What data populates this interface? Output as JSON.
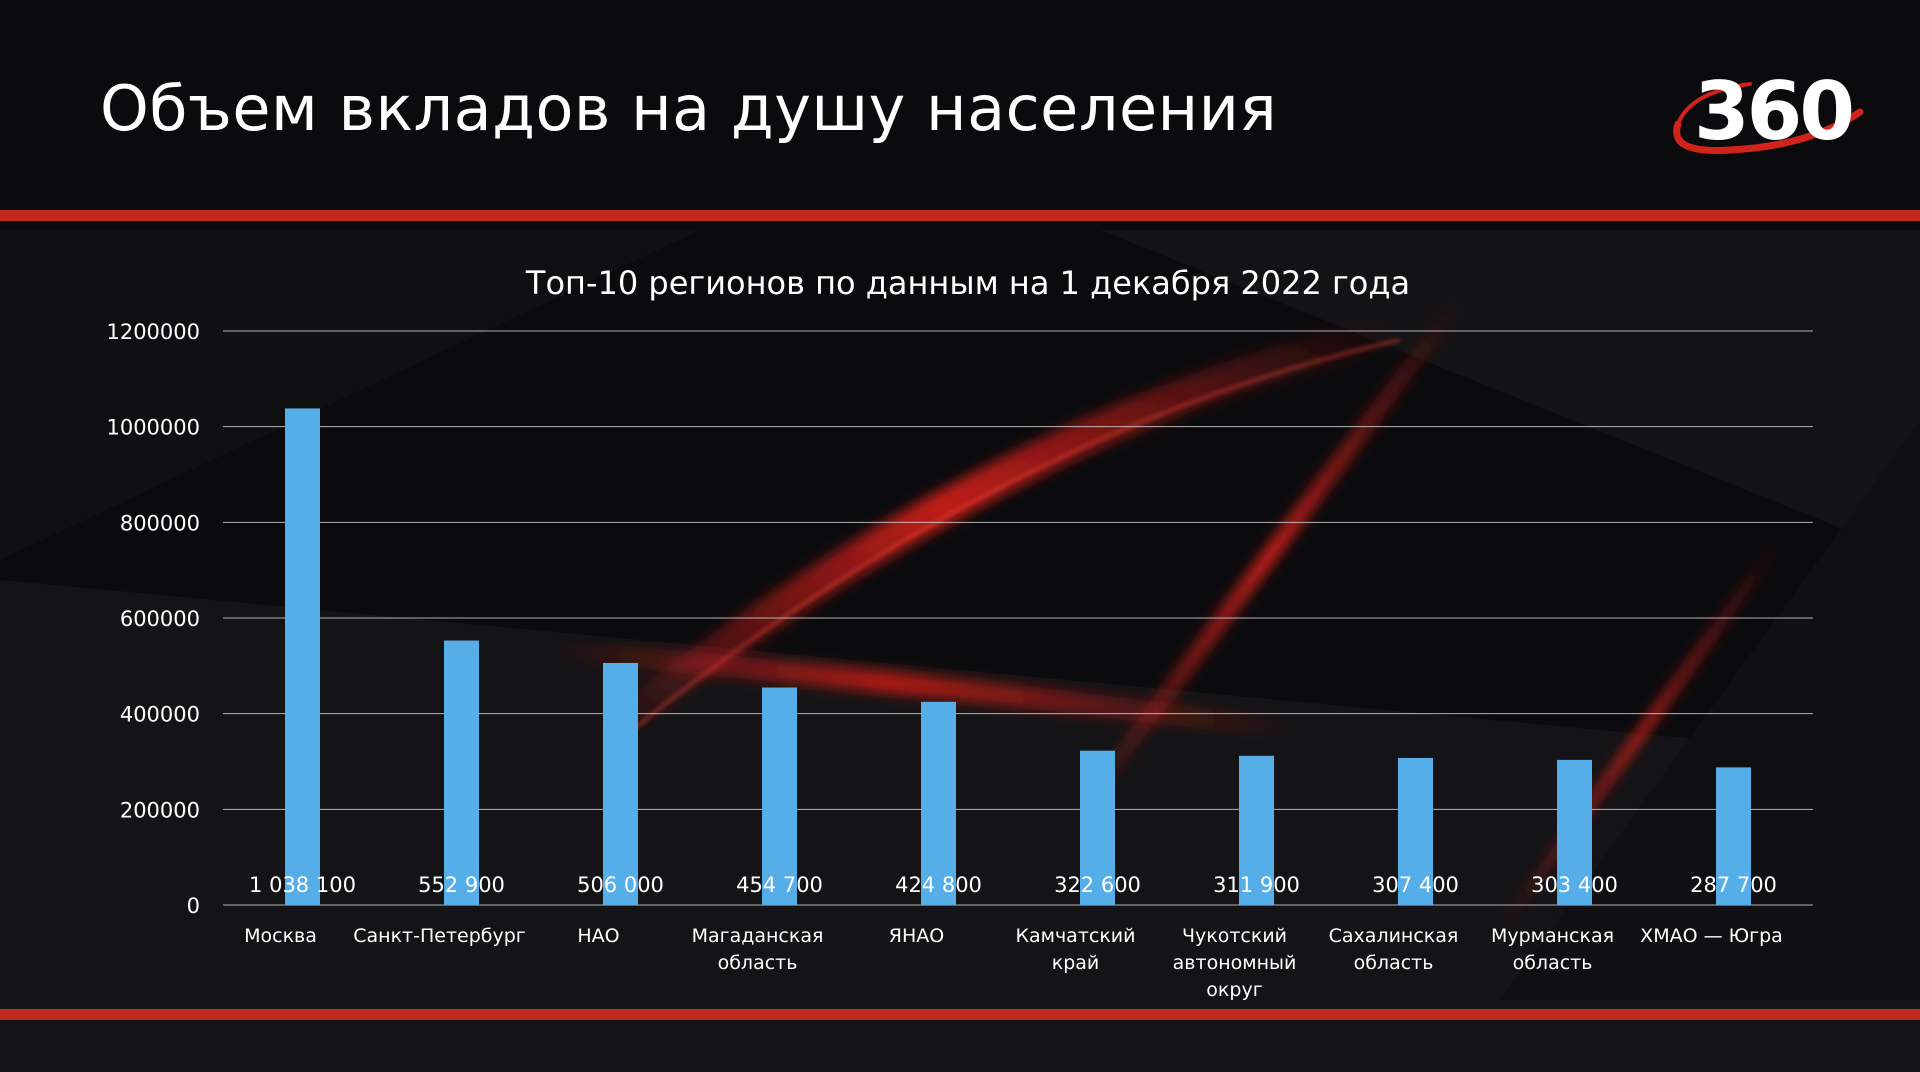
{
  "page": {
    "title": "Объем вкладов на душу населения",
    "logo_text": "360"
  },
  "colors": {
    "background": "#0b0b0d",
    "accent_red": "#c3281f",
    "bar": "#55aee8",
    "gridline": "#d0d0d0",
    "text": "#ffffff"
  },
  "chart_data": {
    "type": "bar",
    "title": "Топ-10 регионов по данным на 1 декабря 2022 года",
    "xlabel": "",
    "ylabel": "",
    "ylim": [
      0,
      1200000
    ],
    "yticks": [
      0,
      200000,
      400000,
      600000,
      800000,
      1000000,
      1200000
    ],
    "ytick_labels": [
      "0",
      "200000",
      "400000",
      "600000",
      "800000",
      "1000000",
      "1200000"
    ],
    "grid": true,
    "legend": "none",
    "categories": [
      [
        "Москва"
      ],
      [
        "Санкт-Петербург"
      ],
      [
        "НАО"
      ],
      [
        "Магаданская",
        "область"
      ],
      [
        "ЯНАО"
      ],
      [
        "Камчатский",
        "край"
      ],
      [
        "Чукотский",
        "автономный",
        "округ"
      ],
      [
        "Сахалинская",
        "область"
      ],
      [
        "Мурманская",
        "область"
      ],
      [
        "ХМАО — Югра"
      ]
    ],
    "values": [
      1038100,
      552900,
      506000,
      454700,
      424800,
      322600,
      311900,
      307400,
      303400,
      287700
    ],
    "data_labels": [
      "1 038 100",
      "552 900",
      "506 000",
      "454 700",
      "424 800",
      "322 600",
      "311 900",
      "307 400",
      "303 400",
      "287 700"
    ]
  }
}
